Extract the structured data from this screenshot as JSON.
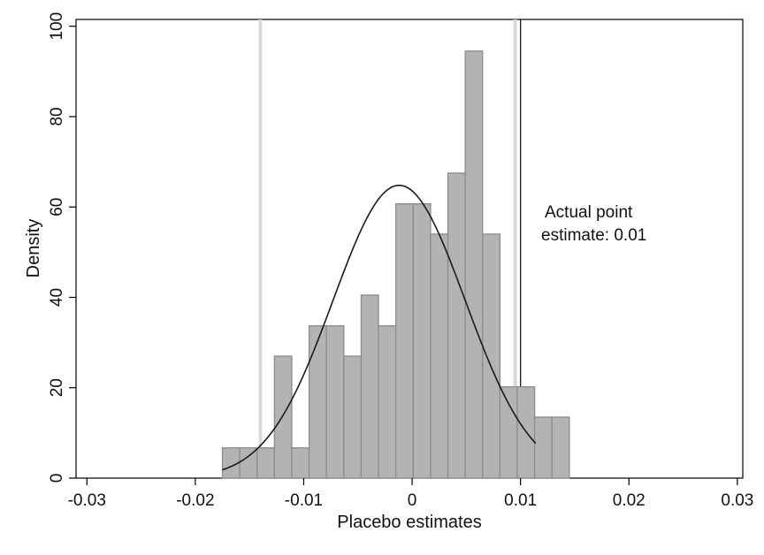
{
  "chart_data": {
    "type": "bar",
    "xlabel": "Placebo estimates",
    "ylabel": "Density",
    "xlim": [
      -0.031,
      0.0305
    ],
    "ylim": [
      0,
      101.5
    ],
    "x_ticks": [
      -0.03,
      -0.02,
      -0.01,
      0,
      0.01,
      0.02,
      0.03
    ],
    "x_tick_labels": [
      "-0.03",
      "-0.02",
      "-0.01",
      "0",
      "0.01",
      "0.02",
      "0.03"
    ],
    "y_ticks": [
      0,
      20,
      40,
      60,
      80,
      100
    ],
    "y_tick_labels": [
      "0",
      "20",
      "40",
      "60",
      "80",
      "100"
    ],
    "bin_width": 0.0016,
    "bins": [
      {
        "x0": -0.0175,
        "height": 6.7
      },
      {
        "x0": -0.0159,
        "height": 6.7
      },
      {
        "x0": -0.0143,
        "height": 6.7
      },
      {
        "x0": -0.0127,
        "height": 27
      },
      {
        "x0": -0.0111,
        "height": 6.7
      },
      {
        "x0": -0.0095,
        "height": 33.7
      },
      {
        "x0": -0.0079,
        "height": 33.7
      },
      {
        "x0": -0.0063,
        "height": 27
      },
      {
        "x0": -0.0047,
        "height": 40.5
      },
      {
        "x0": -0.0031,
        "height": 33.7
      },
      {
        "x0": -0.0015,
        "height": 60.7
      },
      {
        "x0": 0.0001,
        "height": 60.7
      },
      {
        "x0": 0.0017,
        "height": 54
      },
      {
        "x0": 0.0033,
        "height": 67.5
      },
      {
        "x0": 0.0049,
        "height": 94.5
      },
      {
        "x0": 0.0065,
        "height": 54
      },
      {
        "x0": 0.0081,
        "height": 20.2
      },
      {
        "x0": 0.0097,
        "height": 20.2
      },
      {
        "x0": 0.0113,
        "height": 13.5
      },
      {
        "x0": 0.0129,
        "height": 13.5
      }
    ],
    "normal_curve": {
      "mean": -0.0012,
      "sd": 0.0061,
      "peak": 64.8,
      "x_range": [
        -0.0175,
        0.0114
      ]
    },
    "reference_lines": [
      {
        "x": -0.014,
        "style": "light"
      },
      {
        "x": 0.0095,
        "style": "light"
      },
      {
        "x": 0.01,
        "style": "dark"
      }
    ],
    "annotation": {
      "line1": "Actual point",
      "line2": "estimate: 0.01"
    },
    "colors": {
      "bar_fill": "#b3b3b3",
      "bar_stroke": "#8c8c8c",
      "curve": "#1a1a1a",
      "light_line": "#d9d9d9",
      "dark_line": "#222222"
    }
  }
}
